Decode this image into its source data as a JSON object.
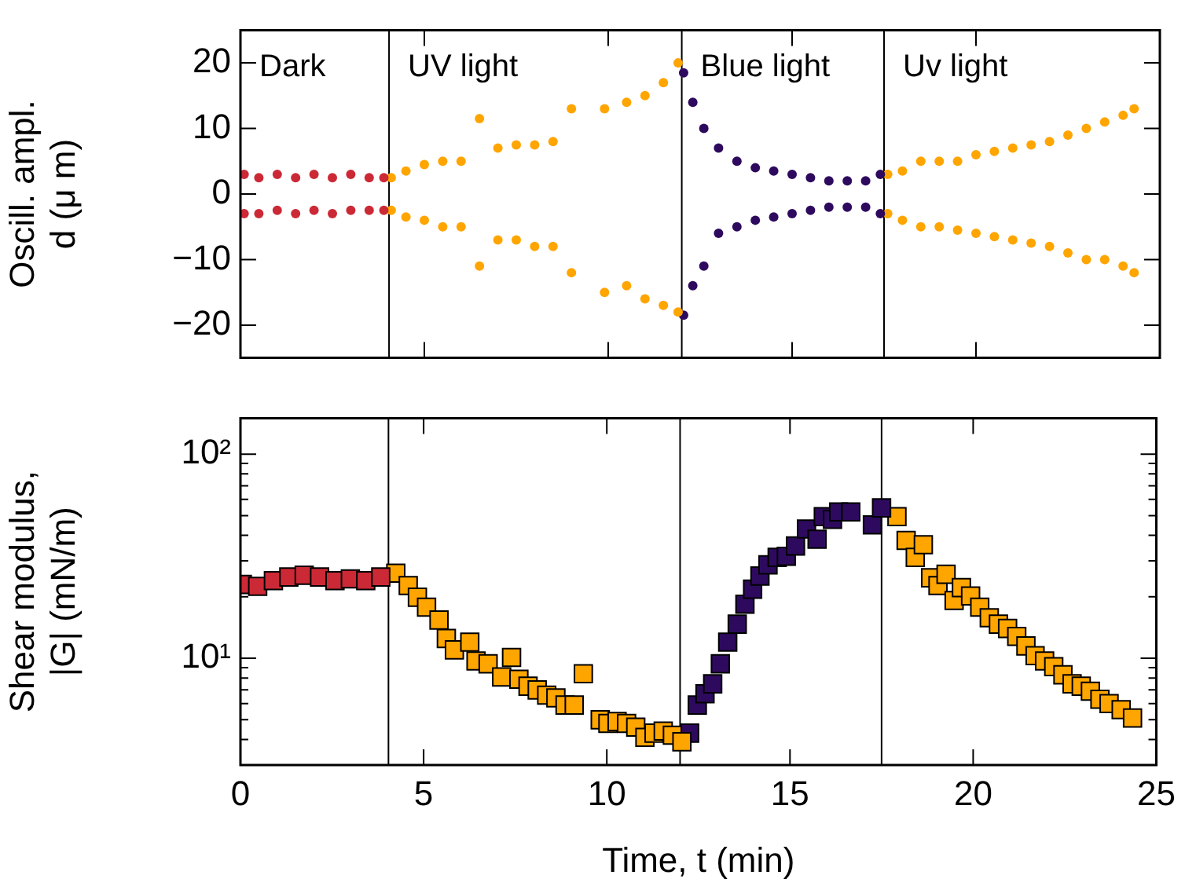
{
  "chart_data": [
    {
      "type": "scatter",
      "ylabel": "Oscill. ampl.\nd (μ m)",
      "xlim": [
        0,
        25
      ],
      "xticks": [
        0,
        5,
        10,
        15,
        20,
        25
      ],
      "ylim": [
        -25,
        25
      ],
      "yticks": [
        {
          "value": -20,
          "label": "−20"
        },
        {
          "value": -10,
          "label": "−10"
        },
        0,
        10,
        20
      ],
      "tick_labels": "y",
      "marker": "circle",
      "legend": false,
      "grid": false,
      "ref_lines": [
        {
          "axis": "x",
          "value": 4.04,
          "color": "#000000"
        },
        {
          "axis": "x",
          "value": 12,
          "color": "#000000"
        },
        {
          "axis": "x",
          "value": 17.5,
          "color": "#000000"
        }
      ],
      "annotations": [
        "Dark",
        "UV light",
        "Blue light",
        "Uv light"
      ],
      "series": [
        {
          "color": "#cc2936",
          "x": [
            0.1,
            0.1,
            0.5,
            0.5,
            1,
            1,
            1.5,
            1.5,
            2,
            2,
            2.5,
            2.5,
            3,
            3,
            3.5,
            3.5,
            3.9,
            3.9
          ],
          "values": [
            3,
            -3,
            2.5,
            -3,
            3,
            -2.5,
            2.5,
            -3,
            3,
            -2.5,
            2.5,
            -3,
            3,
            -2.5,
            2.5,
            -2.5,
            2.5,
            -2.5
          ]
        },
        {
          "color": "#ffa500",
          "x": [
            4.1,
            4.1,
            4.5,
            4.5,
            5,
            5,
            5.5,
            5.5,
            6,
            6,
            6.5,
            6.5,
            7,
            7,
            7.5,
            7.5,
            8,
            8,
            8.5,
            8.5,
            9,
            9,
            9.9,
            9.9,
            10.5,
            10.5,
            11,
            11,
            11.5,
            11.5,
            11.9,
            11.9
          ],
          "values": [
            2.5,
            -2.5,
            3.5,
            -3.5,
            4.5,
            -4,
            5,
            -5,
            5,
            -5,
            11.5,
            -11,
            7,
            -7,
            7.5,
            -7,
            7.5,
            -8,
            8,
            -8,
            13,
            -12,
            13,
            -15,
            14,
            -14,
            15,
            -16,
            17,
            -17,
            20,
            -18
          ]
        },
        {
          "color": "#2e0a5e",
          "x": [
            12.05,
            12.05,
            12.3,
            12.3,
            12.6,
            12.6,
            13,
            13,
            13.5,
            13.5,
            14,
            14,
            14.5,
            14.5,
            15,
            15,
            15.5,
            15.5,
            16,
            16,
            16.5,
            16.5,
            17,
            17,
            17.4,
            17.4
          ],
          "values": [
            18.5,
            -18.5,
            14,
            -14,
            10,
            -11,
            7,
            -6,
            5,
            -5,
            4,
            -4,
            3.5,
            -3.5,
            3,
            -3,
            2.5,
            -2.5,
            2,
            -2,
            2,
            -2,
            2,
            -2,
            3,
            -3
          ]
        },
        {
          "color": "#ffa500",
          "x": [
            17.6,
            17.6,
            18,
            18,
            18.5,
            18.5,
            19,
            19,
            19.5,
            19.5,
            20,
            20,
            20.5,
            20.5,
            21,
            21,
            21.5,
            21.5,
            22,
            22,
            22.5,
            22.5,
            23,
            23,
            23.5,
            23.5,
            24,
            24,
            24.3,
            24.3
          ],
          "values": [
            3,
            -3,
            3.5,
            -4,
            5,
            -5,
            5,
            -5,
            5,
            -5.5,
            6,
            -6,
            6.5,
            -6.5,
            7,
            -7,
            7.5,
            -7.5,
            8,
            -8,
            9,
            -9,
            10,
            -10,
            11,
            -10,
            12,
            -11,
            13,
            -12
          ]
        }
      ]
    },
    {
      "type": "scatter",
      "xlabel": "Time, t (min)",
      "ylabel": "Shear modulus,\n|G| (mN/m)",
      "log": "y",
      "xlim": [
        0,
        25
      ],
      "xticks": [
        0,
        5,
        10,
        15,
        20,
        25
      ],
      "ylim": [
        3,
        150
      ],
      "yticks": [
        {
          "value": 3,
          "label": null
        },
        {
          "value": 4,
          "label": null
        },
        {
          "value": 5,
          "label": null
        },
        {
          "value": 6,
          "label": null
        },
        {
          "value": 7,
          "label": null
        },
        {
          "value": 8,
          "label": null
        },
        {
          "value": 9,
          "label": null
        },
        {
          "value": 10,
          "label": "10¹"
        },
        {
          "value": 20,
          "label": null
        },
        {
          "value": 30,
          "label": null
        },
        {
          "value": 40,
          "label": null
        },
        {
          "value": 50,
          "label": null
        },
        {
          "value": 60,
          "label": null
        },
        {
          "value": 70,
          "label": null
        },
        {
          "value": 80,
          "label": null
        },
        {
          "value": 90,
          "label": null
        },
        {
          "value": 100,
          "label": "10²"
        }
      ],
      "marker": "square",
      "legend": false,
      "grid": false,
      "ref_lines": [
        {
          "axis": "x",
          "value": 4.04,
          "color": "#000000"
        },
        {
          "axis": "x",
          "value": 12,
          "color": "#000000"
        },
        {
          "axis": "x",
          "value": 17.5,
          "color": "#000000"
        }
      ],
      "series": [
        {
          "color": "#cc2936",
          "x": [
            0.05,
            0.47,
            0.9,
            1.32,
            1.74,
            2.16,
            2.58,
            3,
            3.42,
            3.83
          ],
          "values": [
            23,
            22.5,
            24,
            25,
            25.5,
            25,
            24,
            24.5,
            24,
            25
          ]
        },
        {
          "color": "#ffa500",
          "x": [
            4.24,
            4.58,
            4.83,
            5.08,
            5.42,
            5.62,
            5.84,
            6.26,
            6.43,
            6.76,
            7.13,
            7.4,
            7.6,
            7.85,
            8.1,
            8.36,
            8.61,
            8.86,
            9.11,
            9.36,
            9.82,
            10.03,
            10.28,
            10.54,
            10.79,
            11.04,
            11.29,
            11.54,
            11.79,
            12.05
          ],
          "values": [
            26.1,
            22.7,
            19.9,
            17.8,
            15.4,
            12.5,
            11,
            12,
            9.7,
            9.4,
            8.1,
            10.1,
            7.9,
            7.3,
            7,
            6.6,
            6.4,
            5.9,
            5.9,
            8.4,
            5,
            4.8,
            4.9,
            4.8,
            4.6,
            4.1,
            4.3,
            4.4,
            4.2,
            3.9
          ]
        },
        {
          "color": "#2e0a5e",
          "x": [
            12.26,
            12.47,
            12.68,
            12.89,
            13.1,
            13.3,
            13.56,
            13.77,
            13.98,
            14.18,
            14.4,
            14.65,
            14.9,
            15.15,
            15.45,
            15.74,
            15.91,
            16.16,
            16.33,
            16.66,
            17.25,
            17.5
          ],
          "values": [
            4.3,
            5.9,
            6.7,
            7.5,
            9.4,
            12,
            14.7,
            18.4,
            21.8,
            25.3,
            28.7,
            31.2,
            31.6,
            35.5,
            43,
            38.3,
            49.4,
            47.9,
            52.1,
            52.1,
            45,
            54.5
          ]
        },
        {
          "color": "#ffa500",
          "x": [
            17.92,
            18.17,
            18.42,
            18.64,
            18.84,
            19.04,
            19.26,
            19.48,
            19.68,
            19.93,
            20.18,
            20.44,
            20.69,
            20.94,
            21.19,
            21.44,
            21.69,
            21.95,
            22.2,
            22.45,
            22.7,
            22.95,
            23.2,
            23.46,
            23.71,
            24.04,
            24.35
          ],
          "values": [
            49.4,
            37.8,
            31.2,
            36,
            24.8,
            22.7,
            25.8,
            19.2,
            22.2,
            20.2,
            17.8,
            15.8,
            14.7,
            14,
            12.8,
            11.5,
            10.3,
            9.7,
            9.1,
            8.3,
            7.5,
            7.3,
            6.9,
            6.3,
            6,
            5.6,
            5.1
          ]
        }
      ]
    }
  ]
}
